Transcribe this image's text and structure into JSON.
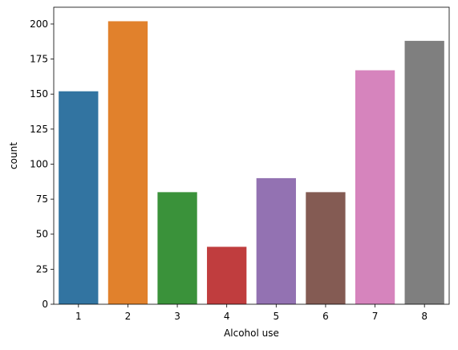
{
  "chart_data": {
    "type": "bar",
    "categories": [
      "1",
      "2",
      "3",
      "4",
      "5",
      "6",
      "7",
      "8"
    ],
    "values": [
      152,
      202,
      80,
      41,
      90,
      80,
      167,
      188
    ],
    "colors": [
      "#3274a1",
      "#e1812c",
      "#3a923a",
      "#c03d3e",
      "#9372b2",
      "#845b53",
      "#d684bd",
      "#7f7f7f"
    ],
    "xlabel": "Alcohol use",
    "ylabel": "count",
    "ylim": [
      0,
      212
    ],
    "yticks": [
      0,
      25,
      50,
      75,
      100,
      125,
      150,
      175,
      200
    ],
    "grid": false,
    "legend": "none"
  }
}
